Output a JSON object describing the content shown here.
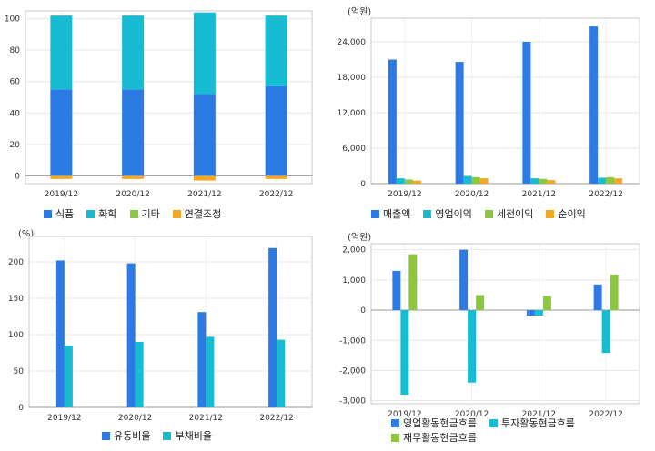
{
  "colors": {
    "blue": "#2c7be5",
    "teal": "#17bcd2",
    "green": "#8dc63f",
    "orange": "#f5a623"
  },
  "chart_data": [
    {
      "id": "c1",
      "type": "stacked-bar",
      "unit": "",
      "categories": [
        "2019/12",
        "2020/12",
        "2021/12",
        "2022/12"
      ],
      "ylim": [
        -5,
        105
      ],
      "yticks": [
        0,
        20,
        40,
        60,
        80,
        100
      ],
      "ytick_labels": [
        "0",
        "20",
        "40",
        "60",
        "80",
        "100"
      ],
      "series": [
        {
          "name": "식품",
          "color": "#2c7be5",
          "values": [
            55,
            55,
            52,
            57
          ]
        },
        {
          "name": "화학",
          "color": "#17bcd2",
          "values": [
            47,
            47,
            52,
            45
          ]
        },
        {
          "name": "기타",
          "color": "#8dc63f",
          "values": [
            0,
            0,
            0,
            0
          ]
        },
        {
          "name": "연결조정",
          "color": "#f5a623",
          "values": [
            -2,
            -2,
            -3,
            -2
          ]
        }
      ]
    },
    {
      "id": "c2",
      "type": "bar",
      "unit": "(억원)",
      "categories": [
        "2019/12",
        "2020/12",
        "2021/12",
        "2022/12"
      ],
      "ylim": [
        0,
        28000
      ],
      "yticks": [
        0,
        6000,
        12000,
        18000,
        24000
      ],
      "ytick_labels": [
        "0",
        "6,000",
        "12,000",
        "18,000",
        "24,000"
      ],
      "series": [
        {
          "name": "매출액",
          "color": "#2c7be5",
          "values": [
            21000,
            20600,
            24000,
            26600
          ]
        },
        {
          "name": "영업이익",
          "color": "#17bcd2",
          "values": [
            900,
            1300,
            900,
            1000
          ]
        },
        {
          "name": "세전이익",
          "color": "#8dc63f",
          "values": [
            700,
            1100,
            800,
            1100
          ]
        },
        {
          "name": "순이익",
          "color": "#f5a623",
          "values": [
            500,
            900,
            600,
            900
          ]
        }
      ]
    },
    {
      "id": "c3",
      "type": "bar",
      "unit": "(%)",
      "categories": [
        "2019/12",
        "2020/12",
        "2021/12",
        "2022/12"
      ],
      "ylim": [
        0,
        235
      ],
      "yticks": [
        0,
        50,
        100,
        150,
        200
      ],
      "ytick_labels": [
        "0",
        "50",
        "100",
        "150",
        "200"
      ],
      "series": [
        {
          "name": "유동비율",
          "color": "#2c7be5",
          "values": [
            202,
            198,
            131,
            219
          ]
        },
        {
          "name": "부채비율",
          "color": "#17bcd2",
          "values": [
            85,
            90,
            97,
            93
          ]
        }
      ]
    },
    {
      "id": "c4",
      "type": "bar",
      "unit": "(억원)",
      "categories": [
        "2019/12",
        "2020/12",
        "2021/12",
        "2022/12"
      ],
      "ylim": [
        -3100,
        2200
      ],
      "yticks": [
        -3000,
        -2000,
        -1000,
        0,
        1000,
        2000
      ],
      "ytick_labels": [
        "-3,000",
        "-2,000",
        "-1,000",
        "0",
        "1,000",
        "2,000"
      ],
      "series": [
        {
          "name": "영업활동현금흐름",
          "color": "#2c7be5",
          "values": [
            1300,
            2000,
            -180,
            850
          ]
        },
        {
          "name": "투자활동현금흐름",
          "color": "#17bcd2",
          "values": [
            -2800,
            -2400,
            -180,
            -1420
          ]
        },
        {
          "name": "재무활동현금흐름",
          "color": "#8dc63f",
          "values": [
            1850,
            500,
            470,
            1180
          ]
        }
      ]
    }
  ]
}
